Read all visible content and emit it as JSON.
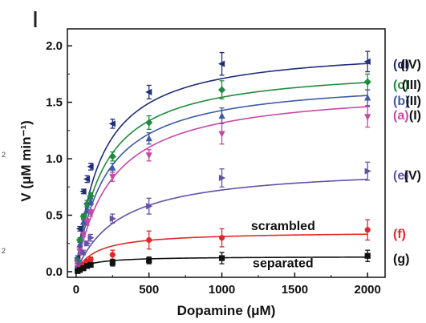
{
  "chart_data": {
    "type": "scatter",
    "xlabel": "Dopamine (μM)",
    "ylabel": "V (μM min⁻¹)",
    "xlim": [
      -60,
      2120
    ],
    "ylim": [
      -0.05,
      2.15
    ],
    "xticks": [
      0,
      500,
      1000,
      1500,
      2000
    ],
    "xtick_labels": [
      "0",
      "500",
      "1000",
      "1500",
      "2000"
    ],
    "yticks": [
      0.0,
      0.5,
      1.0,
      1.5,
      2.0
    ],
    "ytick_labels": [
      "0.0",
      "0.5",
      "1.0",
      "1.5",
      "2.0"
    ],
    "grid": false,
    "series": [
      {
        "key": "d",
        "name": "(d)",
        "roman": "(IV)",
        "color": "#1f2d7a",
        "marker": "triangle-left",
        "fit": {
          "vmax": 2.0,
          "km": 170
        },
        "x": [
          10,
          25,
          50,
          75,
          100,
          250,
          500,
          1000,
          2000
        ],
        "y": [
          0.12,
          0.38,
          0.71,
          0.82,
          0.93,
          1.31,
          1.59,
          1.84,
          1.86
        ],
        "err": [
          0.02,
          0.02,
          0.02,
          0.03,
          0.03,
          0.04,
          0.06,
          0.1,
          0.09
        ],
        "label_y": 1.84
      },
      {
        "key": "c",
        "name": "(c)",
        "roman": "(III)",
        "color": "#1e8c3c",
        "marker": "diamond",
        "fit": {
          "vmax": 1.83,
          "km": 185
        },
        "x": [
          10,
          25,
          50,
          75,
          100,
          250,
          500,
          1000,
          2000
        ],
        "y": [
          0.1,
          0.28,
          0.49,
          0.6,
          0.67,
          1.02,
          1.32,
          1.61,
          1.68
        ],
        "err": [
          0.02,
          0.02,
          0.02,
          0.03,
          0.03,
          0.04,
          0.06,
          0.08,
          0.07
        ],
        "label_y": 1.66
      },
      {
        "key": "b",
        "name": "(b)",
        "roman": "(II)",
        "color": "#3c5aa6",
        "marker": "triangle-up",
        "fit": {
          "vmax": 1.72,
          "km": 205
        },
        "x": [
          10,
          25,
          50,
          75,
          100,
          250,
          500,
          1000,
          2000
        ],
        "y": [
          0.09,
          0.24,
          0.44,
          0.55,
          0.62,
          0.92,
          1.18,
          1.38,
          1.54
        ],
        "err": [
          0.02,
          0.02,
          0.02,
          0.03,
          0.03,
          0.04,
          0.05,
          0.07,
          0.07
        ],
        "label_y": 1.52
      },
      {
        "key": "a",
        "name": "(a)",
        "roman": "(I)",
        "color": "#c548a6",
        "marker": "triangle-down",
        "fit": {
          "vmax": 1.64,
          "km": 245
        },
        "x": [
          10,
          25,
          50,
          75,
          100,
          250,
          500,
          1000,
          2000
        ],
        "y": [
          0.07,
          0.18,
          0.33,
          0.44,
          0.52,
          0.84,
          1.03,
          1.22,
          1.37
        ],
        "err": [
          0.02,
          0.02,
          0.02,
          0.03,
          0.03,
          0.04,
          0.05,
          0.09,
          0.09
        ],
        "label_y": 1.39
      },
      {
        "key": "e",
        "name": "(e)",
        "roman": "(V)",
        "color": "#6350a8",
        "marker": "triangle-right",
        "fit": {
          "vmax": 0.94,
          "km": 300
        },
        "x": [
          10,
          25,
          50,
          75,
          100,
          250,
          500,
          1000,
          2000
        ],
        "y": [
          0.03,
          0.08,
          0.17,
          0.25,
          0.3,
          0.47,
          0.58,
          0.83,
          0.89
        ],
        "err": [
          0.02,
          0.02,
          0.02,
          0.02,
          0.03,
          0.04,
          0.07,
          0.08,
          0.08
        ],
        "label_y": 0.86
      },
      {
        "key": "f",
        "name": "(f)",
        "roman": "",
        "color": "#e0292b",
        "marker": "circle",
        "fit": {
          "vmax": 0.355,
          "km": 140
        },
        "x": [
          10,
          25,
          50,
          75,
          100,
          250,
          500,
          1000,
          2000
        ],
        "y": [
          0.01,
          0.03,
          0.06,
          0.09,
          0.11,
          0.15,
          0.28,
          0.3,
          0.37
        ],
        "err": [
          0.01,
          0.01,
          0.02,
          0.02,
          0.02,
          0.04,
          0.08,
          0.08,
          0.09
        ],
        "label_y": 0.34
      },
      {
        "key": "g",
        "name": "(g)",
        "roman": "",
        "color": "#111111",
        "marker": "square",
        "fit": {
          "vmax": 0.135,
          "km": 95
        },
        "x": [
          10,
          25,
          50,
          75,
          100,
          250,
          500,
          1000,
          2000
        ],
        "y": [
          0.005,
          0.015,
          0.03,
          0.05,
          0.06,
          0.08,
          0.1,
          0.12,
          0.14
        ],
        "err": [
          0.01,
          0.01,
          0.01,
          0.01,
          0.01,
          0.03,
          0.03,
          0.05,
          0.05
        ],
        "label_y": 0.12
      }
    ],
    "annotations": [
      {
        "text": "scrambled",
        "series": "f",
        "x": 1420,
        "y": 0.37
      },
      {
        "text": "separated",
        "series": "g",
        "x": 1420,
        "y": 0.04
      }
    ]
  },
  "stray_marks": [
    "2",
    "2"
  ]
}
